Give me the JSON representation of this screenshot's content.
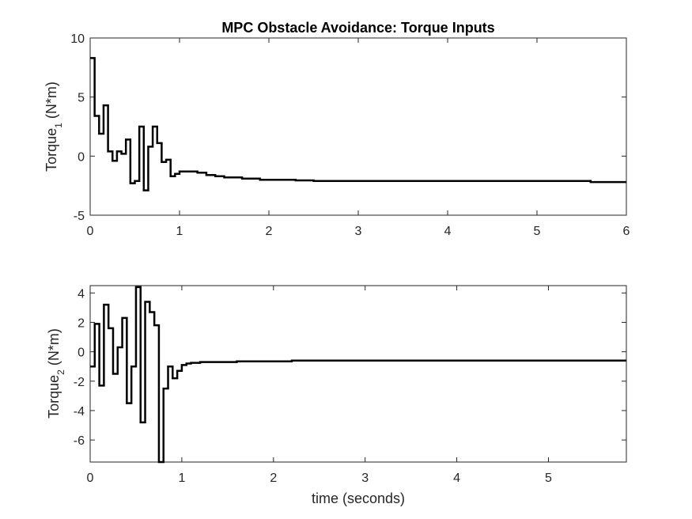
{
  "chart_data": [
    {
      "type": "line",
      "title": "MPC Obstacle Avoidance: Torque Inputs",
      "ylabel": {
        "base": "Torque",
        "sub": "1",
        "unit": " (N*m)"
      },
      "xlim": [
        0,
        6
      ],
      "ylim": [
        -5,
        10
      ],
      "xticks": [
        0,
        1,
        2,
        3,
        4,
        5,
        6
      ],
      "yticks": [
        -5,
        0,
        5,
        10
      ],
      "series": [
        {
          "x": [
            0,
            0.05,
            0.1,
            0.15,
            0.2,
            0.25,
            0.3,
            0.35,
            0.4,
            0.45,
            0.5,
            0.55,
            0.6,
            0.65,
            0.7,
            0.75,
            0.8,
            0.85,
            0.9,
            0.95,
            1.0,
            1.1,
            1.2,
            1.3,
            1.4,
            1.5,
            1.7,
            1.9,
            2.1,
            2.3,
            2.5,
            3.0,
            3.5,
            4.0,
            4.5,
            5.0,
            5.5,
            5.6,
            5.85
          ],
          "y": [
            8.3,
            3.4,
            1.9,
            4.3,
            0.4,
            -0.4,
            0.4,
            0.2,
            1.4,
            -2.3,
            -2.1,
            2.5,
            -2.9,
            0.8,
            2.5,
            1.1,
            -0.5,
            -0.3,
            -1.7,
            -1.5,
            -1.3,
            -1.3,
            -1.4,
            -1.6,
            -1.7,
            -1.8,
            -1.9,
            -2.0,
            -2.0,
            -2.05,
            -2.1,
            -2.1,
            -2.1,
            -2.1,
            -2.1,
            -2.1,
            -2.1,
            -2.2,
            -2.2
          ]
        }
      ]
    },
    {
      "type": "line",
      "title": "",
      "ylabel": {
        "base": "Torque",
        "sub": "2",
        "unit": " (N*m)"
      },
      "xlabel": "time (seconds)",
      "xlim": [
        0,
        5.85
      ],
      "ylim": [
        -7.5,
        4.5
      ],
      "xticks": [
        0,
        1,
        2,
        3,
        4,
        5
      ],
      "yticks": [
        -6,
        -4,
        -2,
        0,
        2,
        4
      ],
      "series": [
        {
          "x": [
            0,
            0.05,
            0.1,
            0.15,
            0.2,
            0.25,
            0.3,
            0.35,
            0.4,
            0.45,
            0.5,
            0.55,
            0.6,
            0.65,
            0.7,
            0.75,
            0.8,
            0.85,
            0.9,
            0.95,
            1.0,
            1.05,
            1.1,
            1.2,
            1.3,
            1.4,
            1.6,
            1.8,
            2.0,
            2.2,
            2.5,
            3.0,
            3.5,
            4.0,
            4.5,
            5.0,
            5.5,
            5.85
          ],
          "y": [
            -1.0,
            1.9,
            -2.3,
            3.2,
            1.6,
            -1.5,
            0.3,
            2.3,
            -3.5,
            -1.0,
            4.4,
            -4.8,
            3.4,
            2.7,
            1.8,
            -7.5,
            -2.5,
            -1.0,
            -1.8,
            -1.3,
            -0.9,
            -0.8,
            -0.75,
            -0.7,
            -0.7,
            -0.7,
            -0.65,
            -0.65,
            -0.65,
            -0.6,
            -0.6,
            -0.6,
            -0.6,
            -0.6,
            -0.6,
            -0.6,
            -0.6,
            -0.6
          ]
        }
      ]
    }
  ]
}
